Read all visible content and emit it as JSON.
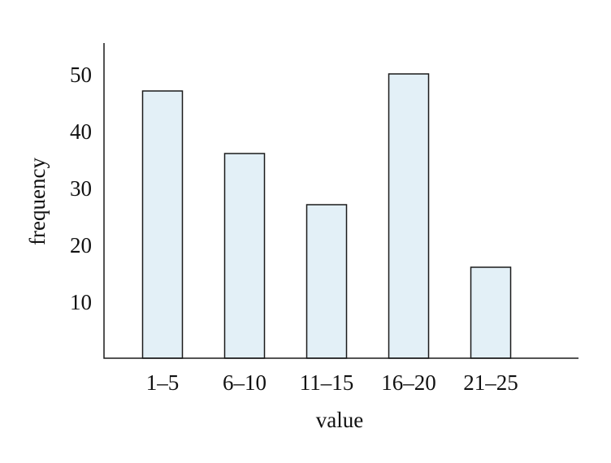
{
  "chart_data": {
    "type": "bar",
    "title": "",
    "xlabel": "value",
    "ylabel": "frequency",
    "categories": [
      "1-5",
      "6-10",
      "11-15",
      "16-20",
      "21-25"
    ],
    "values": [
      47,
      36,
      27,
      50,
      16
    ],
    "y_ticks": [
      "10",
      "20",
      "30",
      "40",
      "50"
    ],
    "ylim": [
      0,
      55
    ],
    "grid": false,
    "bar_color": "#e3f0f7",
    "bar_edge_color": "#1a1a1a"
  }
}
